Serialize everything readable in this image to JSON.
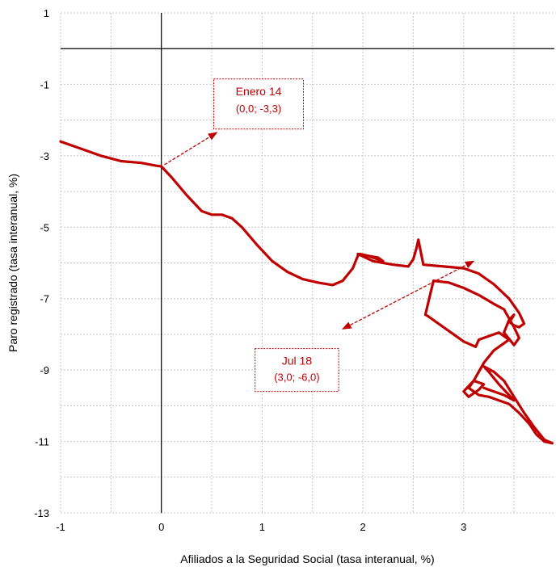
{
  "chart_data": {
    "type": "line",
    "title": "",
    "xlabel": "Afiliados a la Seguridad Social (tasa interanual, %)",
    "ylabel": "Paro registrado (tasa interanual, %)",
    "xlim": [
      -1,
      3.9
    ],
    "ylim": [
      -13,
      1
    ],
    "xticks": [
      -1,
      0,
      1,
      2,
      3
    ],
    "yticks": [
      1,
      -1,
      -3,
      -5,
      -7,
      -9,
      -11,
      -13
    ],
    "grid": true,
    "line_color": "#c00000",
    "series": [
      {
        "x": [
          -1.0,
          -0.8,
          -0.6,
          -0.4,
          -0.2,
          -0.05,
          0.0,
          0.1,
          0.25,
          0.4,
          0.5,
          0.6,
          0.7,
          0.8,
          0.95,
          1.1,
          1.25,
          1.4,
          1.55,
          1.7,
          1.8,
          1.9,
          1.95,
          1.97,
          2.05,
          2.15,
          2.2,
          2.05,
          1.95,
          2.1,
          2.3,
          2.45,
          2.5,
          2.53,
          2.55,
          2.6,
          2.8,
          3.0,
          3.15,
          3.3,
          3.45,
          3.55,
          3.6,
          3.55,
          3.5,
          3.45,
          3.48,
          3.5,
          3.45,
          3.4,
          3.5,
          3.55,
          3.5,
          3.45,
          3.42,
          3.4,
          3.3,
          3.15,
          3.0,
          2.85,
          2.7,
          2.62,
          2.65,
          2.8,
          3.0,
          3.12,
          3.15,
          3.25,
          3.35,
          3.45,
          3.3,
          3.2,
          3.1,
          3.0,
          3.05,
          3.15,
          3.2,
          3.1,
          3.05,
          3.15,
          3.25,
          3.35,
          3.45,
          3.55,
          3.65,
          3.72,
          3.8,
          3.88,
          3.8,
          3.7,
          3.6,
          3.5,
          3.4,
          3.3,
          3.2,
          3.25,
          3.35,
          3.45,
          3.5,
          3.4,
          3.3,
          3.2
        ],
        "y": [
          -2.6,
          -2.8,
          -3.0,
          -3.15,
          -3.2,
          -3.28,
          -3.3,
          -3.6,
          -4.1,
          -4.55,
          -4.65,
          -4.65,
          -4.75,
          -5.0,
          -5.5,
          -5.95,
          -6.25,
          -6.45,
          -6.55,
          -6.62,
          -6.5,
          -6.15,
          -5.8,
          -5.75,
          -5.8,
          -5.85,
          -5.95,
          -5.8,
          -5.75,
          -5.95,
          -6.05,
          -6.1,
          -5.9,
          -5.6,
          -5.35,
          -6.05,
          -6.1,
          -6.15,
          -6.3,
          -6.6,
          -7.0,
          -7.4,
          -7.7,
          -7.8,
          -7.75,
          -7.65,
          -7.55,
          -7.45,
          -7.6,
          -7.95,
          -8.3,
          -8.1,
          -7.8,
          -7.55,
          -7.4,
          -7.3,
          -7.15,
          -6.9,
          -6.7,
          -6.55,
          -6.5,
          -7.45,
          -7.5,
          -7.8,
          -8.2,
          -8.35,
          -8.15,
          -8.05,
          -7.95,
          -8.15,
          -8.45,
          -8.8,
          -9.3,
          -9.6,
          -9.75,
          -9.55,
          -9.4,
          -9.3,
          -9.5,
          -9.7,
          -9.75,
          -9.85,
          -9.95,
          -10.2,
          -10.5,
          -10.8,
          -11.0,
          -11.05,
          -10.95,
          -10.6,
          -10.2,
          -9.75,
          -9.3,
          -9.05,
          -8.9,
          -9.05,
          -9.4,
          -9.7,
          -9.85,
          -9.7,
          -9.6,
          -9.5
        ]
      }
    ],
    "annotations": [
      {
        "line1": "Enero 14",
        "line2": "(0,0; -3,3)"
      },
      {
        "line1": "Jul 18",
        "line2": "(3,0; -6,0)"
      }
    ]
  }
}
